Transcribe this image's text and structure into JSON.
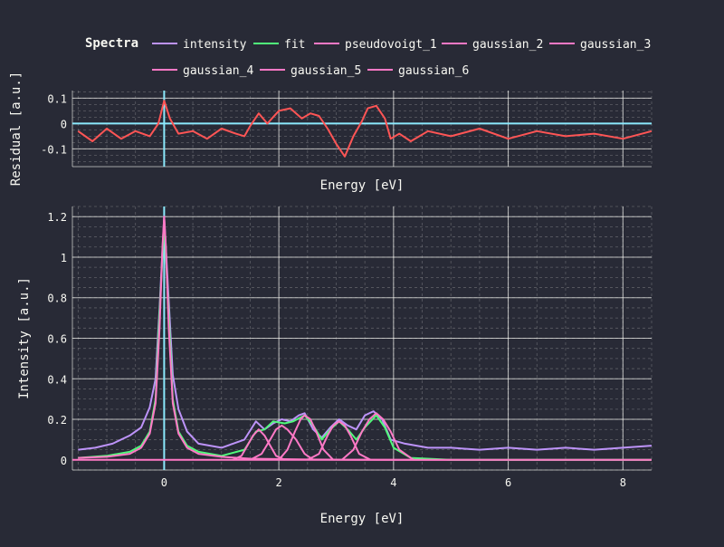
{
  "legend": {
    "title": "Spectra",
    "placement": "top",
    "items": [
      {
        "label": "intensity",
        "color": "#bd93f9"
      },
      {
        "label": "fit",
        "color": "#50fa7b"
      },
      {
        "label": "pseudovoigt_1",
        "color": "#ff79c6"
      },
      {
        "label": "gaussian_2",
        "color": "#ff79c6"
      },
      {
        "label": "gaussian_3",
        "color": "#ff79c6"
      },
      {
        "label": "gaussian_4",
        "color": "#ff79c6"
      },
      {
        "label": "gaussian_5",
        "color": "#ff79c6"
      },
      {
        "label": "gaussian_6",
        "color": "#ff79c6"
      }
    ]
  },
  "colors": {
    "background": "#282a36",
    "residual": "#ff5555",
    "reference_line": "#8be9fd",
    "grid": "#f8f8f2"
  },
  "chart_data": [
    {
      "type": "line",
      "name": "residual",
      "xlabel": "Energy [eV]",
      "ylabel": "Residual [a.u.]",
      "xlim": [
        -1.6,
        8.5
      ],
      "ylim": [
        -0.17,
        0.13
      ],
      "yticks": [
        0.1,
        0,
        -0.1
      ],
      "ytick_labels": [
        "0.1",
        "0",
        "-0.1"
      ],
      "xticks": [],
      "reference_lines": {
        "x": 0,
        "y": 0
      },
      "grid": true,
      "series": [
        {
          "color": "#ff5555",
          "x": [
            -1.5,
            -1.25,
            -1.0,
            -0.75,
            -0.5,
            -0.25,
            -0.1,
            0.0,
            0.1,
            0.25,
            0.5,
            0.75,
            1.0,
            1.25,
            1.4,
            1.5,
            1.65,
            1.8,
            2.0,
            2.2,
            2.4,
            2.55,
            2.7,
            2.85,
            3.0,
            3.15,
            3.3,
            3.45,
            3.55,
            3.7,
            3.85,
            3.95,
            4.1,
            4.3,
            4.6,
            5.0,
            5.5,
            6.0,
            6.5,
            7.0,
            7.5,
            8.0,
            8.5
          ],
          "values": [
            -0.03,
            -0.07,
            -0.02,
            -0.06,
            -0.03,
            -0.05,
            0.0,
            0.09,
            0.02,
            -0.04,
            -0.03,
            -0.06,
            -0.02,
            -0.04,
            -0.05,
            -0.01,
            0.04,
            0.0,
            0.05,
            0.06,
            0.02,
            0.04,
            0.03,
            -0.02,
            -0.08,
            -0.13,
            -0.05,
            0.01,
            0.06,
            0.07,
            0.02,
            -0.06,
            -0.04,
            -0.07,
            -0.03,
            -0.05,
            -0.02,
            -0.06,
            -0.03,
            -0.05,
            -0.04,
            -0.06,
            -0.03
          ]
        }
      ]
    },
    {
      "type": "line",
      "xlabel": "Energy [eV]",
      "ylabel": "Intensity [a.u.]",
      "xlim": [
        -1.6,
        8.5
      ],
      "ylim": [
        -0.05,
        1.25
      ],
      "xticks": [
        0,
        2,
        4,
        6,
        8
      ],
      "xtick_labels": [
        "0",
        "2",
        "4",
        "6",
        "8"
      ],
      "yticks": [
        0,
        0.2,
        0.4,
        0.6,
        0.8,
        1,
        1.2
      ],
      "ytick_labels": [
        "0",
        "0.2",
        "0.4",
        "0.6",
        "0.8",
        "1",
        "1.2"
      ],
      "reference_lines": {
        "x": 0,
        "y": 0
      },
      "grid": true,
      "series": [
        {
          "name": "intensity",
          "color": "#bd93f9",
          "x": [
            -1.5,
            -1.2,
            -0.9,
            -0.6,
            -0.4,
            -0.25,
            -0.15,
            -0.08,
            0.0,
            0.08,
            0.15,
            0.25,
            0.4,
            0.6,
            0.8,
            1.0,
            1.2,
            1.4,
            1.6,
            1.75,
            1.9,
            2.05,
            2.2,
            2.35,
            2.45,
            2.6,
            2.75,
            2.9,
            3.05,
            3.2,
            3.35,
            3.5,
            3.65,
            3.8,
            3.95,
            4.2,
            4.6,
            5.0,
            5.5,
            6.0,
            6.5,
            7.0,
            7.5,
            8.0,
            8.5
          ],
          "values": [
            0.05,
            0.06,
            0.08,
            0.12,
            0.16,
            0.26,
            0.4,
            0.75,
            1.2,
            0.78,
            0.42,
            0.25,
            0.14,
            0.08,
            0.07,
            0.06,
            0.08,
            0.1,
            0.19,
            0.15,
            0.18,
            0.2,
            0.19,
            0.22,
            0.23,
            0.15,
            0.11,
            0.16,
            0.2,
            0.17,
            0.15,
            0.22,
            0.24,
            0.2,
            0.1,
            0.08,
            0.06,
            0.06,
            0.05,
            0.06,
            0.05,
            0.06,
            0.05,
            0.06,
            0.07
          ]
        },
        {
          "name": "fit",
          "color": "#50fa7b",
          "x": [
            -1.5,
            -1.0,
            -0.6,
            -0.4,
            -0.25,
            -0.15,
            -0.08,
            0.0,
            0.08,
            0.15,
            0.25,
            0.4,
            0.6,
            1.0,
            1.4,
            1.6,
            1.75,
            1.9,
            2.1,
            2.25,
            2.45,
            2.6,
            2.75,
            2.9,
            3.05,
            3.2,
            3.35,
            3.5,
            3.7,
            3.85,
            4.0,
            4.3,
            5.0,
            6.0,
            7.0,
            8.5
          ],
          "values": [
            0.01,
            0.02,
            0.04,
            0.07,
            0.14,
            0.3,
            0.72,
            1.18,
            0.72,
            0.3,
            0.14,
            0.07,
            0.04,
            0.02,
            0.05,
            0.14,
            0.15,
            0.19,
            0.18,
            0.19,
            0.22,
            0.17,
            0.1,
            0.15,
            0.19,
            0.15,
            0.1,
            0.16,
            0.22,
            0.16,
            0.06,
            0.01,
            0.0,
            0.0,
            0.0,
            0.0
          ]
        },
        {
          "name": "pseudovoigt_1",
          "color": "#ff79c6",
          "x": [
            -1.5,
            -1.0,
            -0.6,
            -0.4,
            -0.25,
            -0.15,
            -0.08,
            -0.03,
            0.0,
            0.03,
            0.08,
            0.15,
            0.25,
            0.4,
            0.6,
            1.0,
            1.5,
            2.5,
            4.0,
            6.0,
            8.5
          ],
          "values": [
            0.01,
            0.015,
            0.03,
            0.06,
            0.13,
            0.28,
            0.65,
            1.05,
            1.2,
            1.05,
            0.65,
            0.28,
            0.13,
            0.06,
            0.03,
            0.015,
            0.006,
            0.002,
            0.0,
            0.0,
            0.0
          ]
        },
        {
          "name": "gaussian_2",
          "color": "#ff79c6",
          "x": [
            1.2,
            1.35,
            1.45,
            1.55,
            1.65,
            1.75,
            1.85,
            1.95,
            2.1
          ],
          "values": [
            0.0,
            0.02,
            0.07,
            0.12,
            0.15,
            0.12,
            0.07,
            0.02,
            0.0
          ]
        },
        {
          "name": "gaussian_3",
          "color": "#ff79c6",
          "x": [
            1.5,
            1.7,
            1.85,
            1.95,
            2.05,
            2.15,
            2.3,
            2.45,
            2.6
          ],
          "values": [
            0.0,
            0.03,
            0.1,
            0.15,
            0.17,
            0.15,
            0.1,
            0.03,
            0.0
          ]
        },
        {
          "name": "gaussian_4",
          "color": "#ff79c6",
          "x": [
            2.0,
            2.15,
            2.28,
            2.38,
            2.45,
            2.55,
            2.65,
            2.78,
            2.95
          ],
          "values": [
            0.0,
            0.05,
            0.14,
            0.2,
            0.22,
            0.2,
            0.14,
            0.05,
            0.0
          ]
        },
        {
          "name": "gaussian_5",
          "color": "#ff79c6",
          "x": [
            2.5,
            2.7,
            2.85,
            2.95,
            3.05,
            3.15,
            3.25,
            3.4,
            3.6
          ],
          "values": [
            0.0,
            0.03,
            0.12,
            0.17,
            0.19,
            0.17,
            0.12,
            0.03,
            0.0
          ]
        },
        {
          "name": "gaussian_6",
          "color": "#ff79c6",
          "x": [
            3.1,
            3.3,
            3.45,
            3.58,
            3.7,
            3.82,
            3.95,
            4.1,
            4.35
          ],
          "values": [
            0.0,
            0.05,
            0.14,
            0.2,
            0.23,
            0.2,
            0.14,
            0.05,
            0.0
          ]
        }
      ]
    }
  ]
}
